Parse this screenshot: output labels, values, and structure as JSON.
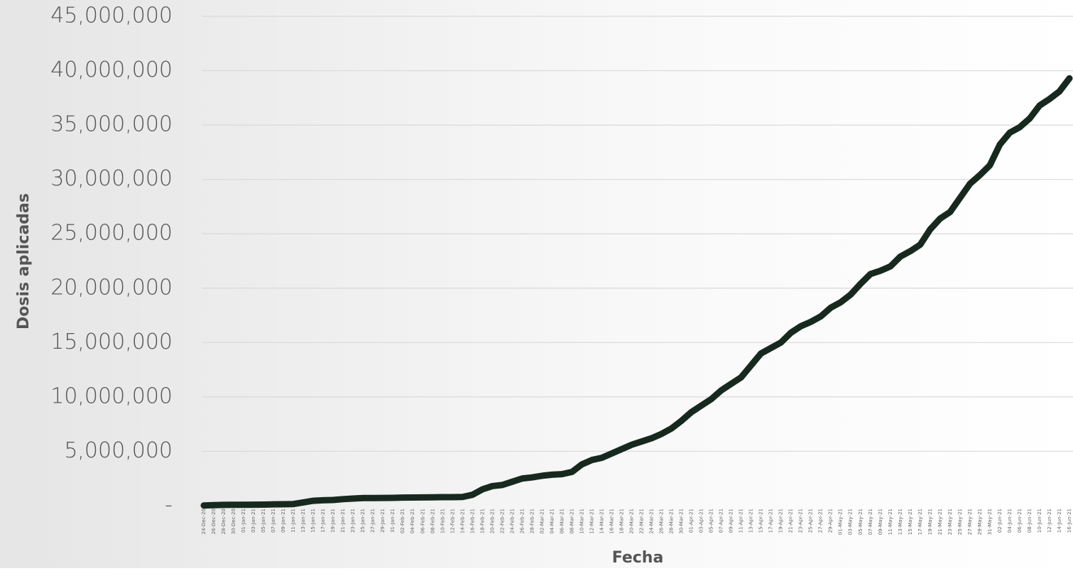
{
  "chart_data": {
    "type": "line",
    "ylabel": "Dosis aplicadas",
    "xlabel": "Fecha",
    "categories": [
      "24-Dec-20",
      "26-Dec-20",
      "28-Dec-20",
      "30-Dec-20",
      "01-Jan-21",
      "03-Jan-21",
      "05-Jan-21",
      "07-Jan-21",
      "09-Jan-21",
      "11-Jan-21",
      "13-Jan-21",
      "15-Jan-21",
      "17-Jan-21",
      "19-Jan-21",
      "21-Jan-21",
      "23-Jan-21",
      "25-Jan-21",
      "27-Jan-21",
      "29-Jan-21",
      "31-Jan-21",
      "02-Feb-21",
      "04-Feb-21",
      "06-Feb-21",
      "08-Feb-21",
      "10-Feb-21",
      "12-Feb-21",
      "14-Feb-21",
      "16-Feb-21",
      "18-Feb-21",
      "20-Feb-21",
      "22-Feb-21",
      "24-Feb-21",
      "26-Feb-21",
      "28-Feb-21",
      "02-Mar-21",
      "04-Mar-21",
      "06-Mar-21",
      "08-Mar-21",
      "10-Mar-21",
      "12-Mar-21",
      "14-Mar-21",
      "16-Mar-21",
      "18-Mar-21",
      "20-Mar-21",
      "22-Mar-21",
      "24-Mar-21",
      "26-Mar-21",
      "28-Mar-21",
      "30-Mar-21",
      "01-Apr-21",
      "03-Apr-21",
      "05-Apr-21",
      "07-Apr-21",
      "09-Apr-21",
      "11-Apr-21",
      "13-Apr-21",
      "15-Apr-21",
      "17-Apr-21",
      "19-Apr-21",
      "21-Apr-21",
      "23-Apr-21",
      "25-Apr-21",
      "27-Apr-21",
      "29-Apr-21",
      "01-May-21",
      "03-May-21",
      "05-May-21",
      "07-May-21",
      "09-May-21",
      "11-May-21",
      "13-May-21",
      "15-May-21",
      "17-May-21",
      "19-May-21",
      "21-May-21",
      "23-May-21",
      "25-May-21",
      "27-May-21",
      "29-May-21",
      "31-May-21",
      "02-Jun-21",
      "04-Jun-21",
      "06-Jun-21",
      "08-Jun-21",
      "10-Jun-21",
      "12-Jun-21",
      "14-Jun-21",
      "16-Jun-21"
    ],
    "series": [
      {
        "name": "Dosis aplicadas",
        "color": "#17291f",
        "values": [
          20000,
          50000,
          70000,
          80000,
          80000,
          90000,
          100000,
          120000,
          130000,
          150000,
          300000,
          450000,
          500000,
          520000,
          600000,
          650000,
          700000,
          700000,
          710000,
          720000,
          740000,
          750000,
          760000,
          770000,
          780000,
          780000,
          800000,
          1000000,
          1500000,
          1800000,
          1900000,
          2200000,
          2500000,
          2600000,
          2750000,
          2850000,
          2900000,
          3100000,
          3800000,
          4200000,
          4400000,
          4800000,
          5200000,
          5600000,
          5900000,
          6200000,
          6600000,
          7100000,
          7800000,
          8600000,
          9200000,
          9800000,
          10600000,
          11200000,
          11800000,
          12900000,
          14000000,
          14500000,
          15000000,
          15900000,
          16500000,
          16900000,
          17400000,
          18200000,
          18700000,
          19400000,
          20400000,
          21300000,
          21600000,
          22000000,
          22900000,
          23400000,
          24000000,
          25400000,
          26400000,
          27000000,
          28300000,
          29600000,
          30400000,
          31300000,
          33200000,
          34300000,
          34800000,
          35600000,
          36800000,
          37400000,
          38100000,
          39300000
        ]
      }
    ],
    "ylim": [
      0,
      45000000
    ],
    "yticks": [
      {
        "value": 0,
        "label": "-"
      },
      {
        "value": 5000000,
        "label": "5,000,000"
      },
      {
        "value": 10000000,
        "label": "10,000,000"
      },
      {
        "value": 15000000,
        "label": "15,000,000"
      },
      {
        "value": 20000000,
        "label": "20,000,000"
      },
      {
        "value": 25000000,
        "label": "25,000,000"
      },
      {
        "value": 30000000,
        "label": "30,000,000"
      },
      {
        "value": 35000000,
        "label": "35,000,000"
      },
      {
        "value": 40000000,
        "label": "40,000,000"
      },
      {
        "value": 45000000,
        "label": "45,000,000"
      }
    ],
    "grid": true
  }
}
